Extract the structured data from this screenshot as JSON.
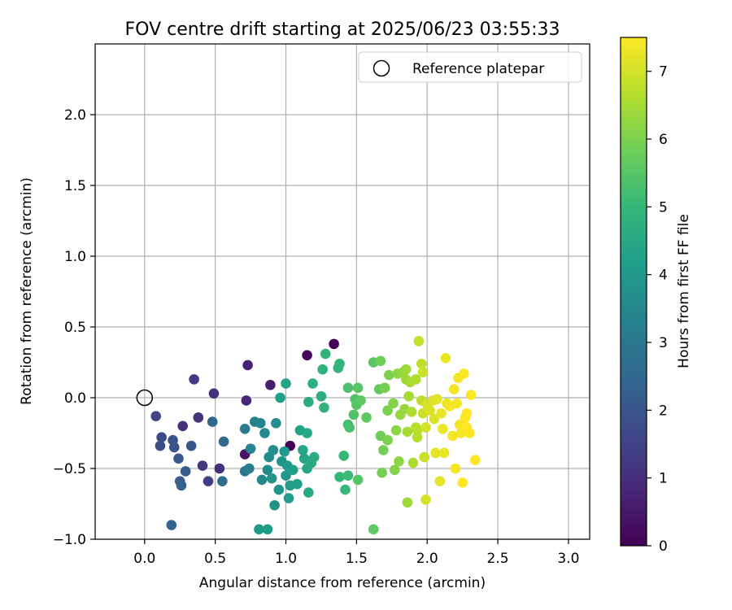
{
  "chart_data": {
    "type": "scatter",
    "title": "FOV centre drift starting at 2025/06/23 03:55:33",
    "xlabel": "Angular distance from reference (arcmin)",
    "ylabel": "Rotation from reference (arcmin)",
    "xlim": [
      -0.35,
      3.15
    ],
    "ylim": [
      -1.0,
      2.5
    ],
    "xticks": [
      0.0,
      0.5,
      1.0,
      1.5,
      2.0,
      2.5,
      3.0
    ],
    "xtick_labels": [
      "0.0",
      "0.5",
      "1.0",
      "1.5",
      "2.0",
      "2.5",
      "3.0"
    ],
    "yticks": [
      -1.0,
      -0.5,
      0.0,
      0.5,
      1.0,
      1.5,
      2.0
    ],
    "ytick_labels": [
      "−1.0",
      "−0.5",
      "0.0",
      "0.5",
      "1.0",
      "1.5",
      "2.0"
    ],
    "grid": true,
    "legend": {
      "position": "top-right",
      "entries": [
        "Reference platepar"
      ]
    },
    "reference_point": {
      "x": 0.0,
      "y": 0.0,
      "label": "Reference platepar"
    },
    "colorbar": {
      "label": "Hours from first FF file",
      "min": 0,
      "max": 7.5,
      "ticks": [
        0,
        1,
        2,
        3,
        4,
        5,
        6,
        7
      ],
      "tick_labels": [
        "0",
        "1",
        "2",
        "3",
        "4",
        "5",
        "6",
        "7"
      ],
      "colormap": "viridis"
    },
    "colormap_stops": [
      "#440154",
      "#482878",
      "#3e4989",
      "#31688e",
      "#26828e",
      "#1f9e89",
      "#35b779",
      "#6ece58",
      "#b5de2b",
      "#fde725"
    ],
    "points": [
      {
        "x": 1.15,
        "y": 0.3,
        "c": 0.1
      },
      {
        "x": 1.34,
        "y": 0.38,
        "c": 0.05
      },
      {
        "x": 1.03,
        "y": -0.34,
        "c": 0.1
      },
      {
        "x": 0.71,
        "y": -0.4,
        "c": 0.4
      },
      {
        "x": 0.73,
        "y": 0.23,
        "c": 0.7
      },
      {
        "x": 0.89,
        "y": 0.09,
        "c": 0.6
      },
      {
        "x": 0.72,
        "y": -0.02,
        "c": 0.8
      },
      {
        "x": 0.49,
        "y": 0.03,
        "c": 1.0
      },
      {
        "x": 0.27,
        "y": -0.2,
        "c": 1.0
      },
      {
        "x": 0.38,
        "y": -0.14,
        "c": 1.1
      },
      {
        "x": 0.35,
        "y": 0.13,
        "c": 1.3
      },
      {
        "x": 0.53,
        "y": -0.5,
        "c": 1.0
      },
      {
        "x": 0.41,
        "y": -0.48,
        "c": 1.2
      },
      {
        "x": 0.45,
        "y": -0.59,
        "c": 1.4
      },
      {
        "x": 0.08,
        "y": -0.13,
        "c": 1.6
      },
      {
        "x": 0.12,
        "y": -0.28,
        "c": 1.7
      },
      {
        "x": 0.11,
        "y": -0.34,
        "c": 1.8
      },
      {
        "x": 0.2,
        "y": -0.3,
        "c": 1.9
      },
      {
        "x": 0.21,
        "y": -0.35,
        "c": 2.0
      },
      {
        "x": 0.33,
        "y": -0.34,
        "c": 2.0
      },
      {
        "x": 0.24,
        "y": -0.43,
        "c": 2.1
      },
      {
        "x": 0.29,
        "y": -0.52,
        "c": 2.2
      },
      {
        "x": 0.25,
        "y": -0.59,
        "c": 2.2
      },
      {
        "x": 0.26,
        "y": -0.62,
        "c": 2.3
      },
      {
        "x": 0.19,
        "y": -0.9,
        "c": 2.4
      },
      {
        "x": 0.48,
        "y": -0.17,
        "c": 2.5
      },
      {
        "x": 0.56,
        "y": -0.31,
        "c": 2.6
      },
      {
        "x": 0.55,
        "y": -0.59,
        "c": 2.7
      },
      {
        "x": 0.71,
        "y": -0.52,
        "c": 3.0
      },
      {
        "x": 0.71,
        "y": -0.22,
        "c": 3.1
      },
      {
        "x": 0.74,
        "y": -0.5,
        "c": 3.2
      },
      {
        "x": 0.78,
        "y": -0.17,
        "c": 3.3
      },
      {
        "x": 0.75,
        "y": -0.36,
        "c": 3.4
      },
      {
        "x": 0.82,
        "y": -0.18,
        "c": 3.4
      },
      {
        "x": 0.85,
        "y": -0.25,
        "c": 3.5
      },
      {
        "x": 0.83,
        "y": -0.58,
        "c": 3.5
      },
      {
        "x": 0.87,
        "y": -0.51,
        "c": 3.6
      },
      {
        "x": 0.88,
        "y": -0.42,
        "c": 3.6
      },
      {
        "x": 0.91,
        "y": -0.37,
        "c": 3.7
      },
      {
        "x": 0.93,
        "y": -0.18,
        "c": 3.7
      },
      {
        "x": 0.9,
        "y": -0.57,
        "c": 3.8
      },
      {
        "x": 0.92,
        "y": -0.76,
        "c": 3.8
      },
      {
        "x": 0.95,
        "y": -0.65,
        "c": 3.9
      },
      {
        "x": 0.97,
        "y": -0.45,
        "c": 3.9
      },
      {
        "x": 0.99,
        "y": -0.38,
        "c": 4.0
      },
      {
        "x": 1.0,
        "y": -0.55,
        "c": 4.0
      },
      {
        "x": 1.01,
        "y": -0.48,
        "c": 4.0
      },
      {
        "x": 1.02,
        "y": -0.71,
        "c": 4.1
      },
      {
        "x": 1.03,
        "y": -0.62,
        "c": 4.1
      },
      {
        "x": 0.81,
        "y": -0.93,
        "c": 4.0
      },
      {
        "x": 0.87,
        "y": -0.93,
        "c": 4.1
      },
      {
        "x": 0.96,
        "y": 0.0,
        "c": 4.2
      },
      {
        "x": 1.0,
        "y": 0.1,
        "c": 4.3
      },
      {
        "x": 1.05,
        "y": -0.51,
        "c": 4.2
      },
      {
        "x": 1.08,
        "y": -0.61,
        "c": 4.2
      },
      {
        "x": 1.1,
        "y": -0.23,
        "c": 4.3
      },
      {
        "x": 1.12,
        "y": -0.37,
        "c": 4.4
      },
      {
        "x": 1.13,
        "y": -0.43,
        "c": 4.4
      },
      {
        "x": 1.15,
        "y": -0.5,
        "c": 4.4
      },
      {
        "x": 1.15,
        "y": -0.25,
        "c": 4.5
      },
      {
        "x": 1.16,
        "y": -0.67,
        "c": 4.5
      },
      {
        "x": 1.18,
        "y": -0.46,
        "c": 4.5
      },
      {
        "x": 1.2,
        "y": -0.42,
        "c": 4.6
      },
      {
        "x": 1.16,
        "y": -0.03,
        "c": 4.6
      },
      {
        "x": 1.19,
        "y": 0.1,
        "c": 4.7
      },
      {
        "x": 1.25,
        "y": 0.01,
        "c": 4.7
      },
      {
        "x": 1.26,
        "y": 0.2,
        "c": 4.8
      },
      {
        "x": 1.27,
        "y": -0.07,
        "c": 4.8
      },
      {
        "x": 1.28,
        "y": 0.31,
        "c": 4.8
      },
      {
        "x": 1.37,
        "y": 0.21,
        "c": 4.9
      },
      {
        "x": 1.38,
        "y": 0.24,
        "c": 4.9
      },
      {
        "x": 1.38,
        "y": -0.56,
        "c": 5.0
      },
      {
        "x": 1.41,
        "y": -0.41,
        "c": 5.0
      },
      {
        "x": 1.42,
        "y": -0.65,
        "c": 5.0
      },
      {
        "x": 1.44,
        "y": -0.55,
        "c": 5.1
      },
      {
        "x": 1.44,
        "y": -0.19,
        "c": 5.2
      },
      {
        "x": 1.44,
        "y": 0.07,
        "c": 5.3
      },
      {
        "x": 1.45,
        "y": -0.21,
        "c": 5.3
      },
      {
        "x": 1.48,
        "y": -0.12,
        "c": 5.4
      },
      {
        "x": 1.49,
        "y": -0.01,
        "c": 5.4
      },
      {
        "x": 1.5,
        "y": -0.05,
        "c": 5.5
      },
      {
        "x": 1.51,
        "y": 0.07,
        "c": 5.5
      },
      {
        "x": 1.51,
        "y": -0.58,
        "c": 5.5
      },
      {
        "x": 1.53,
        "y": -0.02,
        "c": 5.6
      },
      {
        "x": 1.57,
        "y": -0.14,
        "c": 5.6
      },
      {
        "x": 1.62,
        "y": 0.25,
        "c": 5.5
      },
      {
        "x": 1.62,
        "y": -0.93,
        "c": 5.6
      },
      {
        "x": 1.66,
        "y": 0.06,
        "c": 5.7
      },
      {
        "x": 1.67,
        "y": 0.26,
        "c": 5.8
      },
      {
        "x": 1.67,
        "y": -0.27,
        "c": 5.8
      },
      {
        "x": 1.68,
        "y": -0.53,
        "c": 5.9
      },
      {
        "x": 1.69,
        "y": -0.37,
        "c": 5.9
      },
      {
        "x": 1.7,
        "y": 0.07,
        "c": 5.9
      },
      {
        "x": 1.72,
        "y": -0.09,
        "c": 6.0
      },
      {
        "x": 1.72,
        "y": -0.3,
        "c": 6.0
      },
      {
        "x": 1.73,
        "y": 0.16,
        "c": 6.0
      },
      {
        "x": 1.76,
        "y": -0.04,
        "c": 6.1
      },
      {
        "x": 1.77,
        "y": -0.51,
        "c": 6.1
      },
      {
        "x": 1.78,
        "y": -0.23,
        "c": 6.2
      },
      {
        "x": 1.79,
        "y": 0.17,
        "c": 6.2
      },
      {
        "x": 1.8,
        "y": -0.45,
        "c": 6.2
      },
      {
        "x": 1.81,
        "y": -0.12,
        "c": 6.3
      },
      {
        "x": 1.83,
        "y": 0.18,
        "c": 6.3
      },
      {
        "x": 1.84,
        "y": -0.08,
        "c": 6.3
      },
      {
        "x": 1.85,
        "y": 0.2,
        "c": 6.4
      },
      {
        "x": 1.85,
        "y": 0.13,
        "c": 6.4
      },
      {
        "x": 1.86,
        "y": -0.74,
        "c": 6.4
      },
      {
        "x": 1.86,
        "y": -0.24,
        "c": 6.5
      },
      {
        "x": 1.87,
        "y": 0.01,
        "c": 6.5
      },
      {
        "x": 1.88,
        "y": 0.11,
        "c": 6.5
      },
      {
        "x": 1.89,
        "y": -0.1,
        "c": 6.6
      },
      {
        "x": 1.9,
        "y": -0.46,
        "c": 6.6
      },
      {
        "x": 1.92,
        "y": 0.13,
        "c": 6.6
      },
      {
        "x": 1.92,
        "y": -0.21,
        "c": 6.7
      },
      {
        "x": 1.93,
        "y": -0.28,
        "c": 6.7
      },
      {
        "x": 1.93,
        "y": -0.23,
        "c": 6.7
      },
      {
        "x": 1.94,
        "y": 0.4,
        "c": 6.8
      },
      {
        "x": 1.96,
        "y": 0.24,
        "c": 6.8
      },
      {
        "x": 1.96,
        "y": -0.02,
        "c": 6.8
      },
      {
        "x": 1.97,
        "y": 0.18,
        "c": 6.9
      },
      {
        "x": 1.97,
        "y": -0.11,
        "c": 6.9
      },
      {
        "x": 1.98,
        "y": -0.42,
        "c": 6.9
      },
      {
        "x": 1.99,
        "y": -0.72,
        "c": 7.0
      },
      {
        "x": 1.99,
        "y": -0.21,
        "c": 7.0
      },
      {
        "x": 2.0,
        "y": -0.05,
        "c": 7.0
      },
      {
        "x": 2.02,
        "y": -0.09,
        "c": 7.1
      },
      {
        "x": 2.04,
        "y": -0.02,
        "c": 7.1
      },
      {
        "x": 2.05,
        "y": -0.15,
        "c": 7.1
      },
      {
        "x": 2.06,
        "y": -0.39,
        "c": 7.2
      },
      {
        "x": 2.07,
        "y": -0.01,
        "c": 7.2
      },
      {
        "x": 2.09,
        "y": -0.59,
        "c": 7.2
      },
      {
        "x": 2.1,
        "y": -0.11,
        "c": 7.3
      },
      {
        "x": 2.11,
        "y": -0.22,
        "c": 7.3
      },
      {
        "x": 2.12,
        "y": -0.39,
        "c": 7.3
      },
      {
        "x": 2.13,
        "y": 0.28,
        "c": 7.3
      },
      {
        "x": 2.14,
        "y": -0.04,
        "c": 7.3
      },
      {
        "x": 2.16,
        "y": -0.06,
        "c": 7.4
      },
      {
        "x": 2.18,
        "y": -0.27,
        "c": 7.4
      },
      {
        "x": 2.19,
        "y": 0.06,
        "c": 7.4
      },
      {
        "x": 2.2,
        "y": -0.5,
        "c": 7.4
      },
      {
        "x": 2.21,
        "y": -0.04,
        "c": 7.4
      },
      {
        "x": 2.22,
        "y": 0.14,
        "c": 7.4
      },
      {
        "x": 2.23,
        "y": -0.19,
        "c": 7.4
      },
      {
        "x": 2.24,
        "y": -0.25,
        "c": 7.4
      },
      {
        "x": 2.25,
        "y": -0.6,
        "c": 7.5
      },
      {
        "x": 2.26,
        "y": 0.17,
        "c": 7.5
      },
      {
        "x": 2.27,
        "y": -0.14,
        "c": 7.5
      },
      {
        "x": 2.28,
        "y": -0.11,
        "c": 7.5
      },
      {
        "x": 2.3,
        "y": -0.25,
        "c": 7.5
      },
      {
        "x": 2.31,
        "y": 0.02,
        "c": 7.5
      },
      {
        "x": 2.34,
        "y": -0.44,
        "c": 7.5
      },
      {
        "x": 2.28,
        "y": -0.21,
        "c": 7.5
      }
    ]
  }
}
